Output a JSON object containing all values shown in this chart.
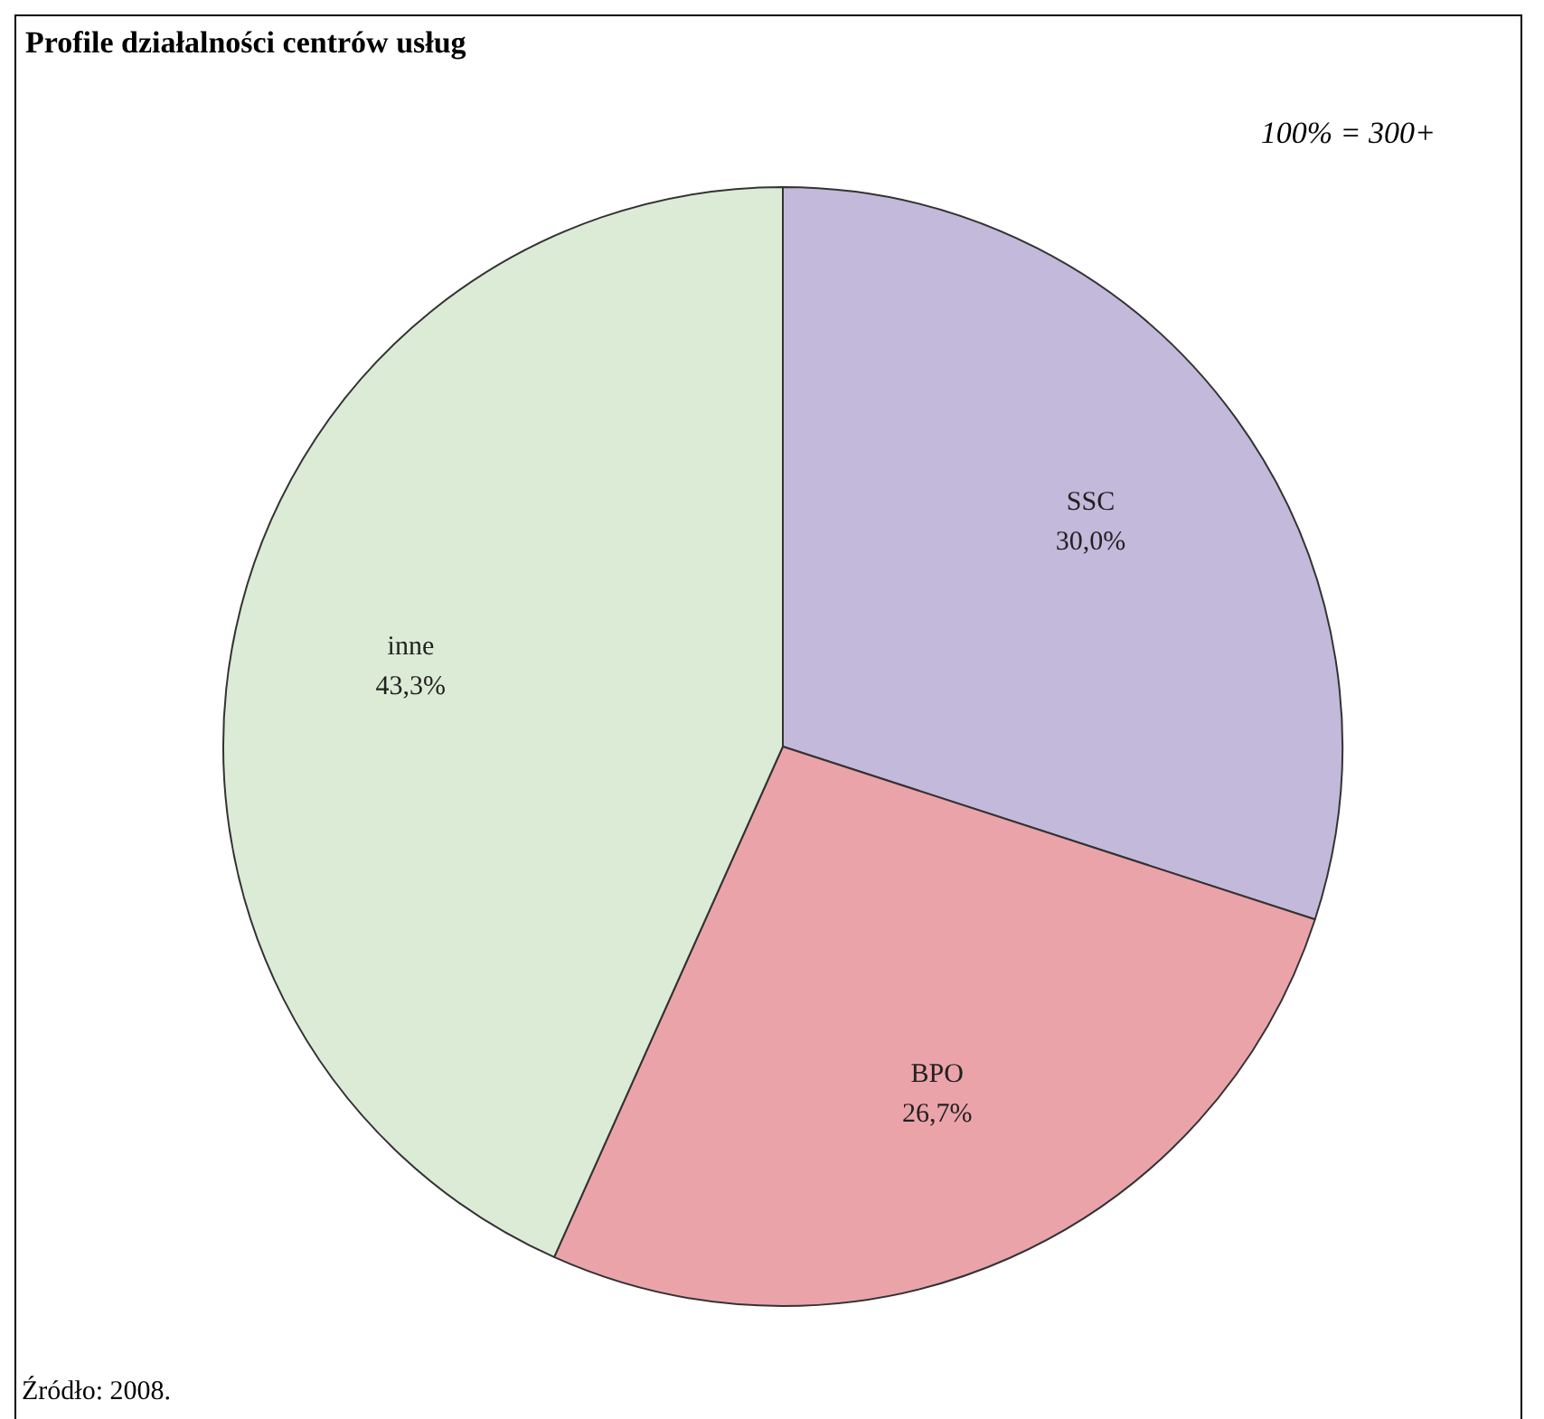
{
  "chart_data": {
    "type": "pie",
    "title": "Profile działalności centrów usług",
    "categories": [
      "SSC",
      "BPO",
      "inne"
    ],
    "values": [
      30.0,
      26.7,
      43.3
    ],
    "colors": [
      "#c3b9da",
      "#eba3aa",
      "#dcebd6"
    ],
    "value_labels": [
      "30,0%",
      "26,7%",
      "43,3%"
    ],
    "legend": false,
    "annotations": [
      "100% = 300+",
      "Źródło: 2008."
    ]
  }
}
